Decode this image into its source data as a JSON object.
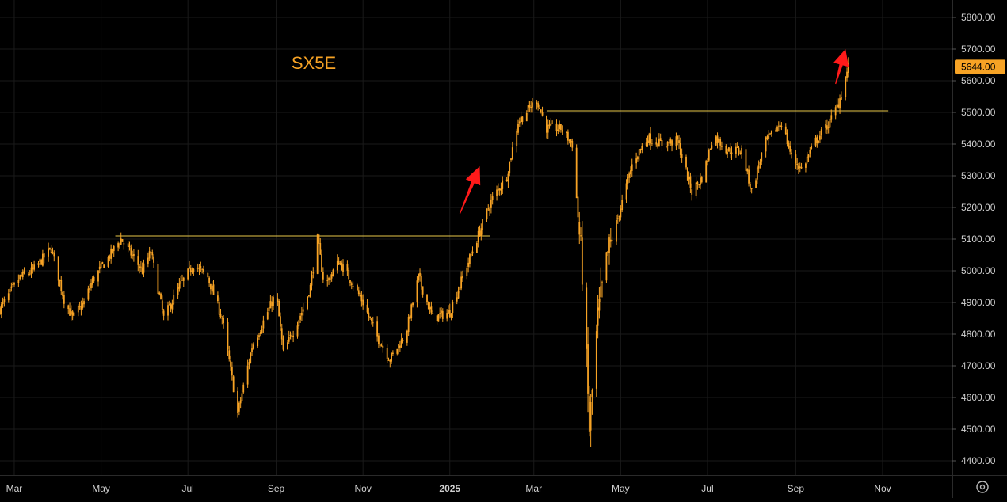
{
  "chart_data": {
    "type": "candlestick",
    "title": "SX5E",
    "y_ticks": [
      "5800.00",
      "5700.00",
      "5600.00",
      "5500.00",
      "5400.00",
      "5300.00",
      "5200.00",
      "5100.00",
      "5000.00",
      "4900.00",
      "4800.00",
      "4700.00",
      "4600.00",
      "4500.00",
      "4400.00"
    ],
    "y_tick_values": [
      5800,
      5700,
      5600,
      5500,
      5400,
      5300,
      5200,
      5100,
      5000,
      4900,
      4800,
      4700,
      4600,
      4500,
      4400
    ],
    "ylim": [
      4355,
      5855
    ],
    "x_ticks": [
      "Mar",
      "May",
      "Jul",
      "Sep",
      "Nov",
      "2025",
      "Mar",
      "May",
      "Jul",
      "Sep",
      "Nov"
    ],
    "x_tick_dates": [
      "2024-03-01",
      "2024-05-01",
      "2024-07-01",
      "2024-09-01",
      "2024-11-01",
      "2025-01-01",
      "2025-03-01",
      "2025-05-01",
      "2025-07-01",
      "2025-09-01",
      "2025-11-01"
    ],
    "xlim": [
      "2024-02-20",
      "2025-12-20"
    ],
    "last_price": "5644.00",
    "grid": true,
    "anchors": [
      [
        "2024-02-20",
        4880
      ],
      [
        "2024-03-05",
        4980
      ],
      [
        "2024-03-14",
        5000
      ],
      [
        "2024-03-27",
        5070
      ],
      [
        "2024-04-05",
        4910
      ],
      [
        "2024-04-11",
        4850
      ],
      [
        "2024-04-19",
        4900
      ],
      [
        "2024-04-25",
        4970
      ],
      [
        "2024-05-15",
        5100
      ],
      [
        "2024-05-30",
        5000
      ],
      [
        "2024-06-05",
        5060
      ],
      [
        "2024-06-14",
        4850
      ],
      [
        "2024-06-25",
        4950
      ],
      [
        "2024-07-05",
        5020
      ],
      [
        "2024-07-15",
        4980
      ],
      [
        "2024-07-25",
        4850
      ],
      [
        "2024-08-05",
        4550
      ],
      [
        "2024-08-15",
        4760
      ],
      [
        "2024-08-25",
        4860
      ],
      [
        "2024-09-01",
        4930
      ],
      [
        "2024-09-06",
        4740
      ],
      [
        "2024-09-20",
        4880
      ],
      [
        "2024-09-25",
        4950
      ],
      [
        "2024-09-30",
        5100
      ],
      [
        "2024-10-05",
        4950
      ],
      [
        "2024-10-15",
        5030
      ],
      [
        "2024-10-25",
        4960
      ],
      [
        "2024-11-01",
        4900
      ],
      [
        "2024-11-10",
        4800
      ],
      [
        "2024-11-20",
        4720
      ],
      [
        "2024-12-01",
        4800
      ],
      [
        "2024-12-10",
        4980
      ],
      [
        "2024-12-20",
        4850
      ],
      [
        "2025-01-01",
        4870
      ],
      [
        "2025-01-10",
        4980
      ],
      [
        "2025-01-20",
        5100
      ],
      [
        "2025-01-30",
        5220
      ],
      [
        "2025-02-10",
        5300
      ],
      [
        "2025-02-18",
        5470
      ],
      [
        "2025-03-03",
        5540
      ],
      [
        "2025-03-10",
        5450
      ],
      [
        "2025-03-20",
        5450
      ],
      [
        "2025-03-28",
        5400
      ],
      [
        "2025-04-04",
        5000
      ],
      [
        "2025-04-09",
        4500
      ],
      [
        "2025-04-15",
        4850
      ],
      [
        "2025-04-22",
        5050
      ],
      [
        "2025-05-01",
        5200
      ],
      [
        "2025-05-10",
        5350
      ],
      [
        "2025-05-20",
        5420
      ],
      [
        "2025-05-30",
        5400
      ],
      [
        "2025-06-10",
        5410
      ],
      [
        "2025-06-20",
        5250
      ],
      [
        "2025-06-28",
        5300
      ],
      [
        "2025-07-05",
        5430
      ],
      [
        "2025-07-15",
        5380
      ],
      [
        "2025-07-25",
        5380
      ],
      [
        "2025-08-01",
        5250
      ],
      [
        "2025-08-10",
        5400
      ],
      [
        "2025-08-22",
        5470
      ],
      [
        "2025-08-29",
        5360
      ],
      [
        "2025-09-05",
        5320
      ],
      [
        "2025-09-15",
        5410
      ],
      [
        "2025-09-25",
        5470
      ],
      [
        "2025-10-01",
        5530
      ],
      [
        "2025-10-08",
        5644
      ]
    ],
    "lines": [
      {
        "from": [
          "2024-05-11",
          5110
        ],
        "to": [
          "2025-01-29",
          5110
        ],
        "color": "#e8c84a"
      },
      {
        "from": [
          "2025-03-10",
          5505
        ],
        "to": [
          "2025-11-05",
          5505
        ],
        "color": "#e8c84a"
      }
    ],
    "arrows": [
      {
        "from": [
          "2025-01-08",
          5180
        ],
        "to": [
          "2025-01-22",
          5330
        ]
      },
      {
        "from": [
          "2025-09-29",
          5590
        ],
        "to": [
          "2025-10-06",
          5700
        ]
      }
    ]
  },
  "colors": {
    "background": "#000000",
    "candle": "#f7a325",
    "grid": "#1a1a1a",
    "axis_text": "#d0d0d0",
    "title": "#f7a325",
    "arrow": "#ff1a1a",
    "level_line": "#e8c84a",
    "price_badge_bg": "#f7a325",
    "price_badge_text": "#000000"
  },
  "icons": {
    "settings": "gear-icon"
  }
}
